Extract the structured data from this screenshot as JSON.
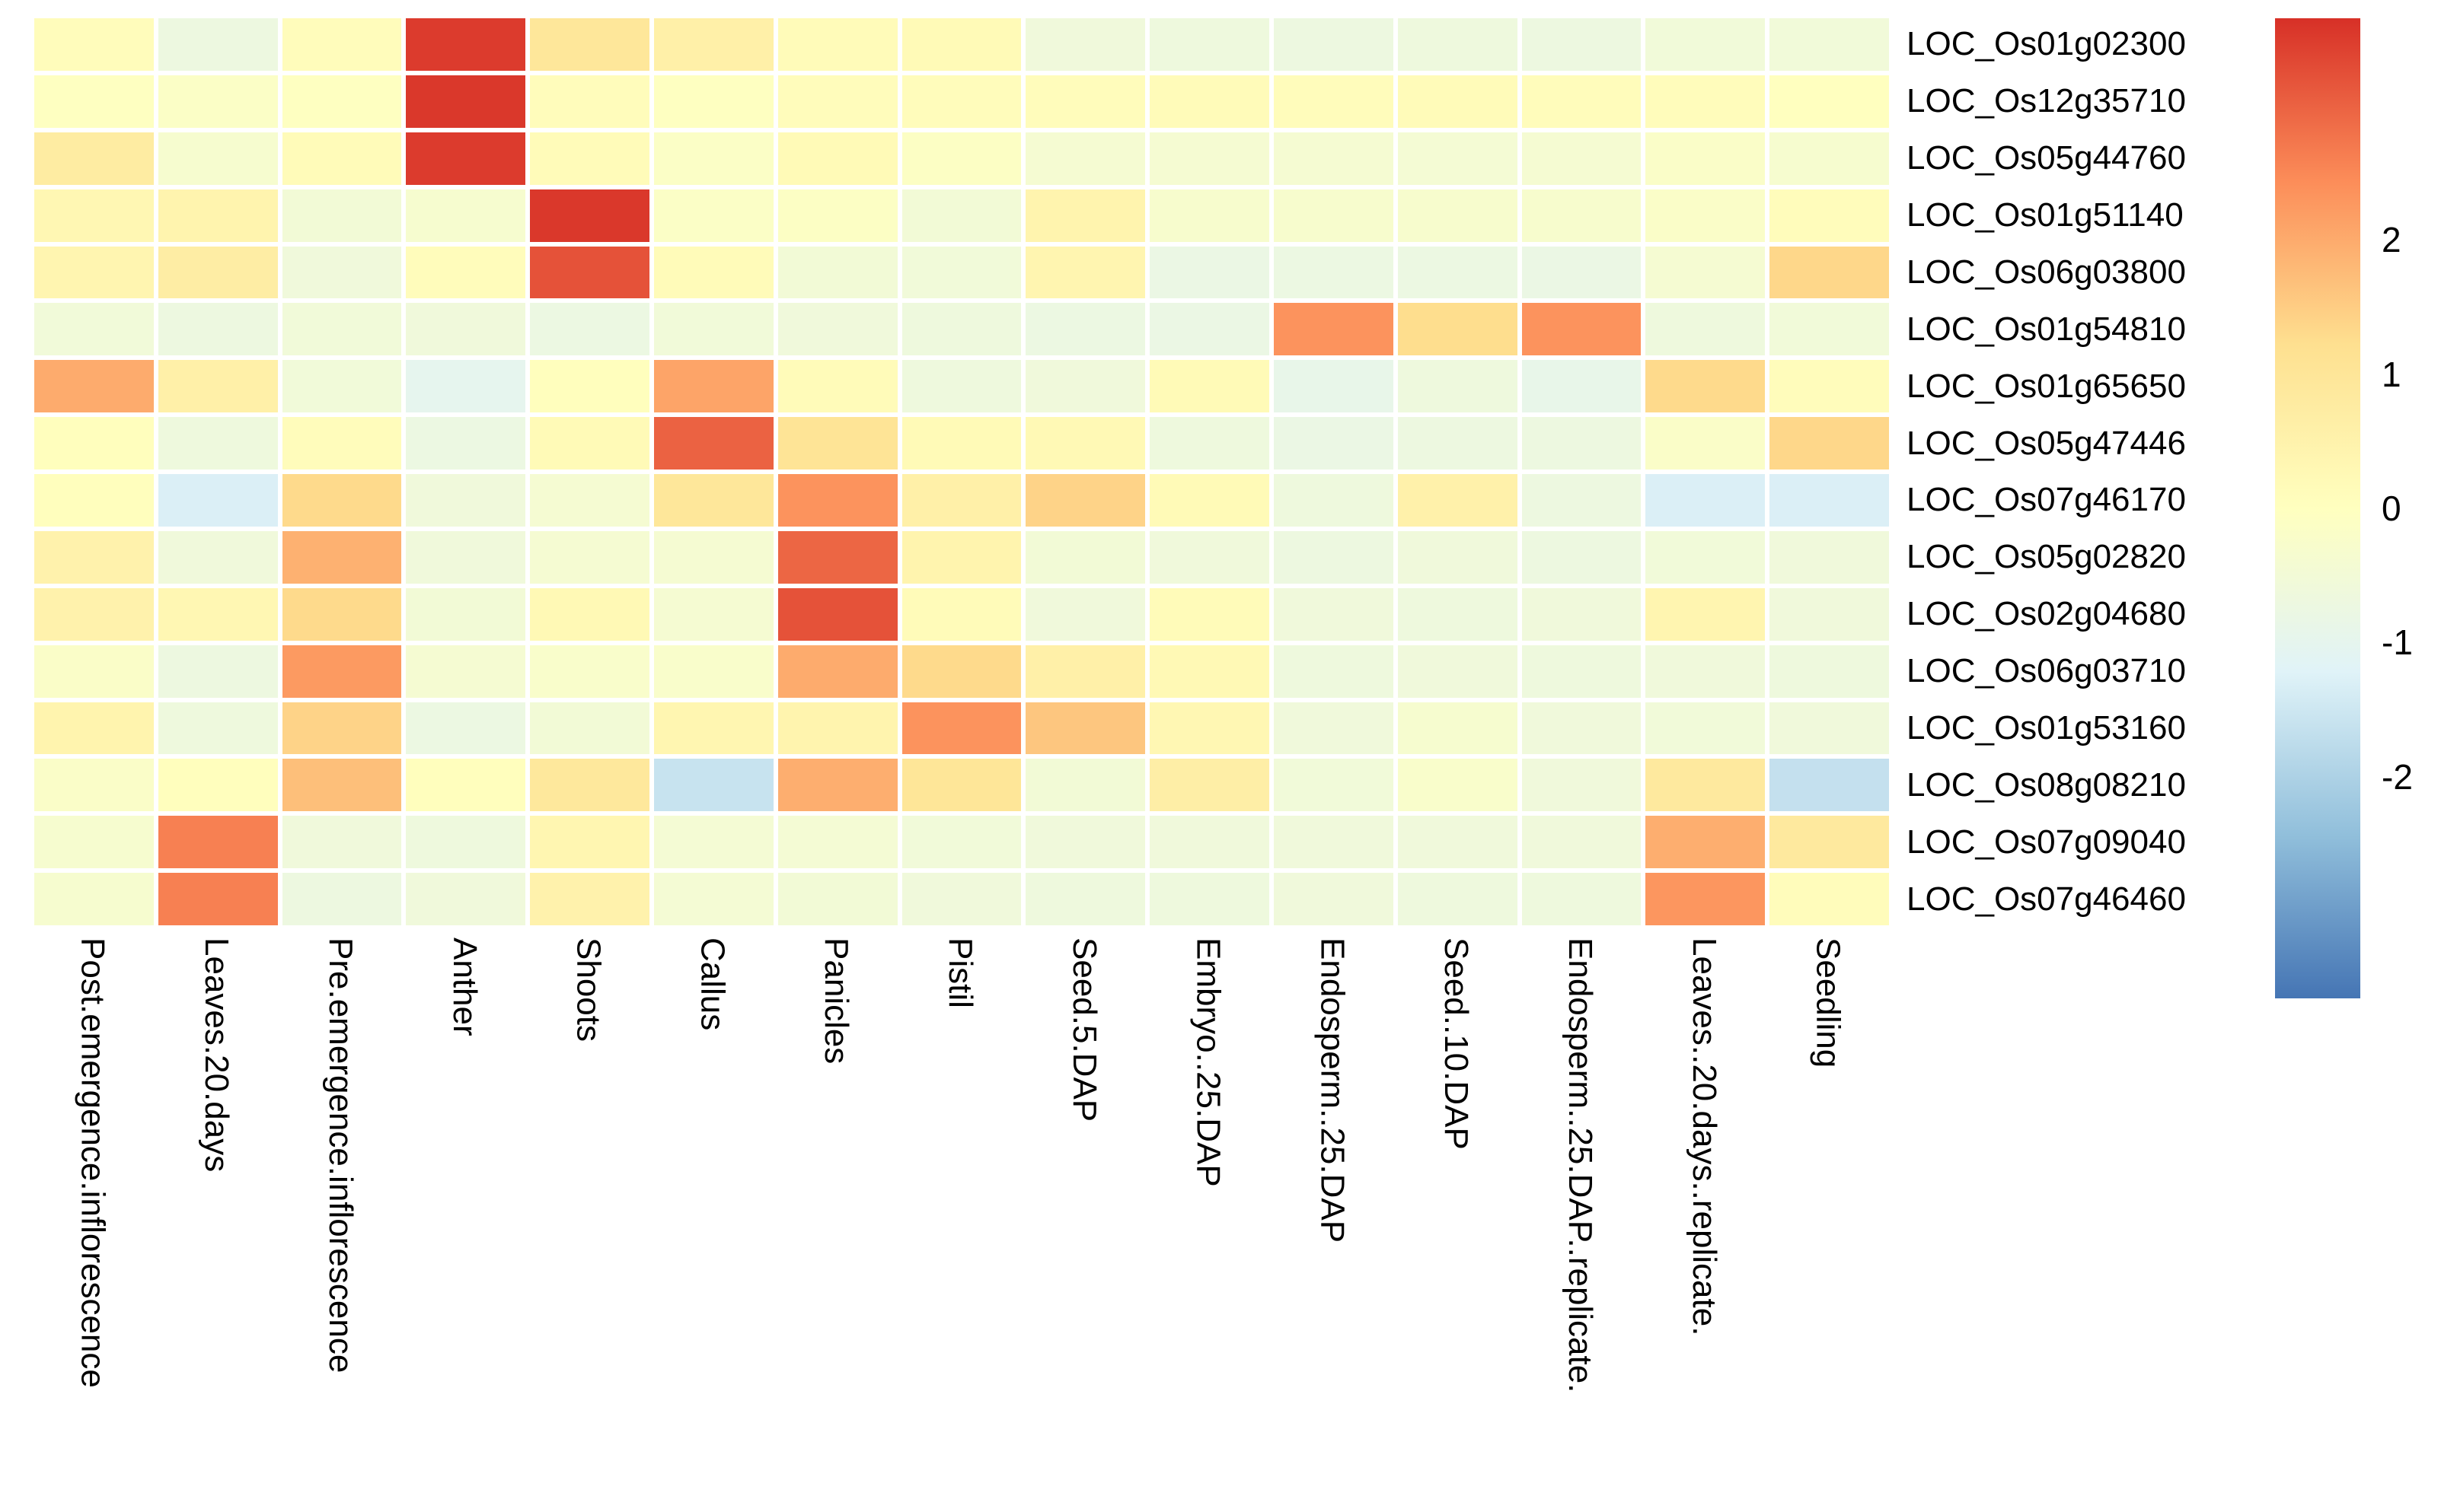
{
  "chart_data": {
    "type": "heatmap",
    "title": "",
    "xlabel": "",
    "ylabel": "",
    "grid": "white-gaps",
    "legend_position": "right",
    "columns": [
      "Post.emergence.inflorescence",
      "Leaves.20.days",
      "Pre.emergence.inflorescence",
      "Anther",
      "Shoots",
      "Callus",
      "Panicles",
      "Pistil",
      "Seed.5.DAP",
      "Embryo..25.DAP",
      "Endosperm..25.DAP",
      "Seed..10.DAP",
      "Endosperm..25.DAP..replicate.",
      "Leaves..20.days..replicate.",
      "Seedling"
    ],
    "rows": [
      "LOC_Os01g02300",
      "LOC_Os12g35710",
      "LOC_Os05g44760",
      "LOC_Os01g51140",
      "LOC_Os06g03800",
      "LOC_Os01g54810",
      "LOC_Os01g65650",
      "LOC_Os05g47446",
      "LOC_Os07g46170",
      "LOC_Os05g02820",
      "LOC_Os02g04680",
      "LOC_Os06g03710",
      "LOC_Os01g53160",
      "LOC_Os08g08210",
      "LOC_Os07g09040",
      "LOC_Os07g46460"
    ],
    "values": [
      [
        0.1,
        -0.7,
        0.1,
        3.5,
        0.95,
        0.6,
        0.15,
        0.2,
        -0.6,
        -0.65,
        -0.7,
        -0.65,
        -0.7,
        -0.55,
        -0.55
      ],
      [
        -0.05,
        -0.15,
        -0.05,
        3.55,
        0.1,
        -0.05,
        0.1,
        0.1,
        0.1,
        0.15,
        0.1,
        0.15,
        0.1,
        0.1,
        0.0
      ],
      [
        0.75,
        -0.35,
        0.15,
        3.5,
        0.15,
        -0.15,
        0.2,
        -0.1,
        -0.4,
        -0.4,
        -0.4,
        -0.45,
        -0.4,
        -0.2,
        -0.35
      ],
      [
        0.3,
        0.45,
        -0.5,
        -0.35,
        3.55,
        -0.15,
        -0.1,
        -0.5,
        0.45,
        -0.3,
        -0.3,
        -0.3,
        -0.3,
        -0.2,
        0.1
      ],
      [
        0.4,
        0.7,
        -0.6,
        0.1,
        3.2,
        0.15,
        -0.5,
        -0.55,
        0.4,
        -0.8,
        -0.75,
        -0.75,
        -0.8,
        -0.4,
        1.35
      ],
      [
        -0.55,
        -0.7,
        -0.55,
        -0.6,
        -0.75,
        -0.55,
        -0.6,
        -0.65,
        -0.75,
        -0.8,
        2.35,
        1.25,
        2.35,
        -0.65,
        -0.55
      ],
      [
        2.0,
        0.6,
        -0.55,
        -1.0,
        0.05,
        2.1,
        0.15,
        -0.65,
        -0.6,
        0.2,
        -0.9,
        -0.65,
        -0.9,
        1.3,
        0.1
      ],
      [
        0.05,
        -0.65,
        0.1,
        -0.75,
        0.2,
        3.0,
        1.05,
        0.2,
        0.25,
        -0.65,
        -0.8,
        -0.7,
        -0.7,
        -0.2,
        1.35
      ],
      [
        0.05,
        -1.3,
        1.3,
        -0.6,
        -0.4,
        0.95,
        2.35,
        0.6,
        1.4,
        0.2,
        -0.65,
        0.55,
        -0.7,
        -1.3,
        -1.3
      ],
      [
        0.5,
        -0.6,
        1.9,
        -0.6,
        -0.4,
        -0.4,
        2.95,
        0.45,
        -0.5,
        -0.6,
        -0.7,
        -0.6,
        -0.7,
        -0.55,
        -0.6
      ],
      [
        0.5,
        0.3,
        1.3,
        -0.5,
        0.25,
        -0.4,
        3.2,
        0.15,
        -0.6,
        0.15,
        -0.6,
        -0.65,
        -0.6,
        0.4,
        -0.6
      ],
      [
        -0.2,
        -0.7,
        2.25,
        -0.4,
        -0.25,
        -0.25,
        2.0,
        1.3,
        0.6,
        0.25,
        -0.65,
        -0.6,
        -0.65,
        -0.6,
        -0.65
      ],
      [
        0.45,
        -0.65,
        1.4,
        -0.75,
        -0.5,
        0.35,
        0.45,
        2.35,
        1.6,
        0.3,
        -0.6,
        -0.35,
        -0.6,
        -0.55,
        -0.6
      ],
      [
        -0.2,
        0.05,
        1.7,
        0.05,
        0.9,
        -1.6,
        1.95,
        1.0,
        -0.5,
        0.65,
        -0.55,
        -0.25,
        -0.6,
        0.85,
        -1.65
      ],
      [
        -0.35,
        2.6,
        -0.6,
        -0.65,
        0.35,
        -0.45,
        -0.45,
        -0.55,
        -0.6,
        -0.6,
        -0.6,
        -0.6,
        -0.6,
        1.95,
        0.85
      ],
      [
        -0.35,
        2.6,
        -0.7,
        -0.6,
        0.5,
        -0.45,
        -0.5,
        -0.6,
        -0.65,
        -0.65,
        -0.6,
        -0.65,
        -0.65,
        2.3,
        0.1
      ]
    ],
    "colorbar": {
      "ticks": [
        "2",
        "1",
        "0",
        "-1",
        "-2"
      ],
      "tick_values": [
        2,
        1,
        0,
        -1,
        -2
      ],
      "domain": [
        -3.65,
        3.65
      ],
      "stops_low_to_high": [
        "#4575B4",
        "#91BFDB",
        "#E0F3F8",
        "#FFFFBF",
        "#FEE090",
        "#FC8D59",
        "#D73027"
      ]
    },
    "colors": {
      "background": "#FFFFFF",
      "text": "#000000",
      "cell_gap": "#FFFFFF"
    }
  }
}
